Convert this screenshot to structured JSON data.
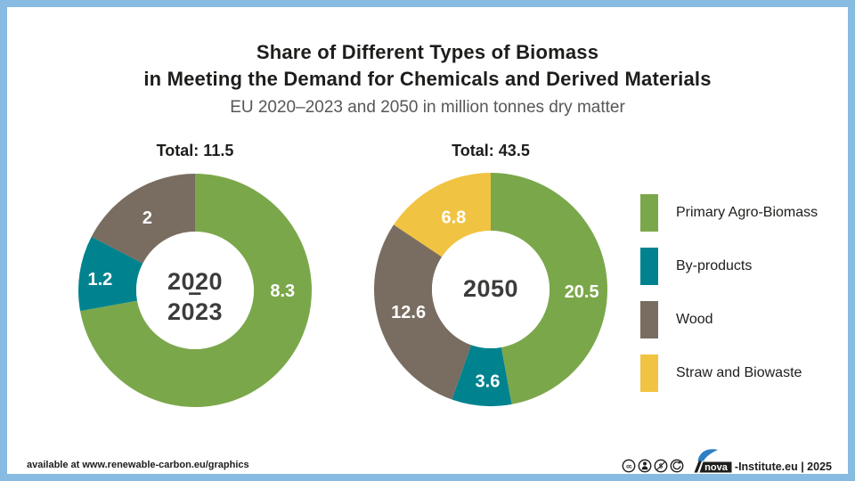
{
  "frame": {
    "border_color": "#88BBE2",
    "background": "#FFFFFF"
  },
  "header": {
    "title_line1": "Share of Different Types of Biomass",
    "title_line2": "in Meeting the Demand for Chemicals and Derived Materials",
    "subtitle": "EU 2020–2023 and 2050 in million tonnes dry matter"
  },
  "chart_data": [
    {
      "type": "pie",
      "style": "donut",
      "title": "Total: 11.5",
      "total": 11.5,
      "unit": "million tonnes dry matter",
      "center_label_lines": [
        "2020",
        "–",
        "2023"
      ],
      "start_angle_deg": 0,
      "direction": "clockwise",
      "slices": [
        {
          "category": "Primary Agro-Biomass",
          "value": 8.3,
          "label": "8.3",
          "color": "#7BA74B",
          "label_angle_deg": 90,
          "label_radius_frac": 0.75
        },
        {
          "category": "By-products",
          "value": 1.2,
          "label": "1.2",
          "color": "#00838E",
          "label_angle_deg": 277,
          "label_radius_frac": 0.82
        },
        {
          "category": "Wood",
          "value": 2,
          "label": "2",
          "color": "#786D60",
          "label_angle_deg": 327,
          "label_radius_frac": 0.75
        }
      ]
    },
    {
      "type": "pie",
      "style": "donut",
      "title": "Total: 43.5",
      "total": 43.5,
      "unit": "million tonnes dry matter",
      "center_label_lines": [
        "2050"
      ],
      "start_angle_deg": 0,
      "direction": "clockwise",
      "slices": [
        {
          "category": "Primary Agro-Biomass",
          "value": 20.5,
          "label": "20.5",
          "color": "#7BA74B",
          "label_angle_deg": 91,
          "label_radius_frac": 0.78
        },
        {
          "category": "By-products",
          "value": 3.6,
          "label": "3.6",
          "color": "#00838E",
          "label_angle_deg": 182,
          "label_radius_frac": 0.78
        },
        {
          "category": "Wood",
          "value": 12.6,
          "label": "12.6",
          "color": "#786D60",
          "label_angle_deg": 255,
          "label_radius_frac": 0.73
        },
        {
          "category": "Straw and Biowaste",
          "value": 6.8,
          "label": "6.8",
          "color": "#F1C342",
          "label_angle_deg": 333,
          "label_radius_frac": 0.7
        }
      ]
    }
  ],
  "legend": {
    "position": "right",
    "items": [
      {
        "label": "Primary Agro-Biomass",
        "color": "#7BA74B"
      },
      {
        "label": "By-products",
        "color": "#00838E"
      },
      {
        "label": "Wood",
        "color": "#786D60"
      },
      {
        "label": "Straw and Biowaste",
        "color": "#F1C342"
      }
    ]
  },
  "footer": {
    "availability_note": "available at www.renewable-carbon.eu/graphics",
    "license_icons": [
      "cc-icon",
      "by-icon",
      "nc-icon",
      "sa-icon"
    ],
    "logo_text": "nova",
    "logo_suffix": "-Institute.eu | 2025",
    "logo_accent_color": "#2D7FC4"
  }
}
